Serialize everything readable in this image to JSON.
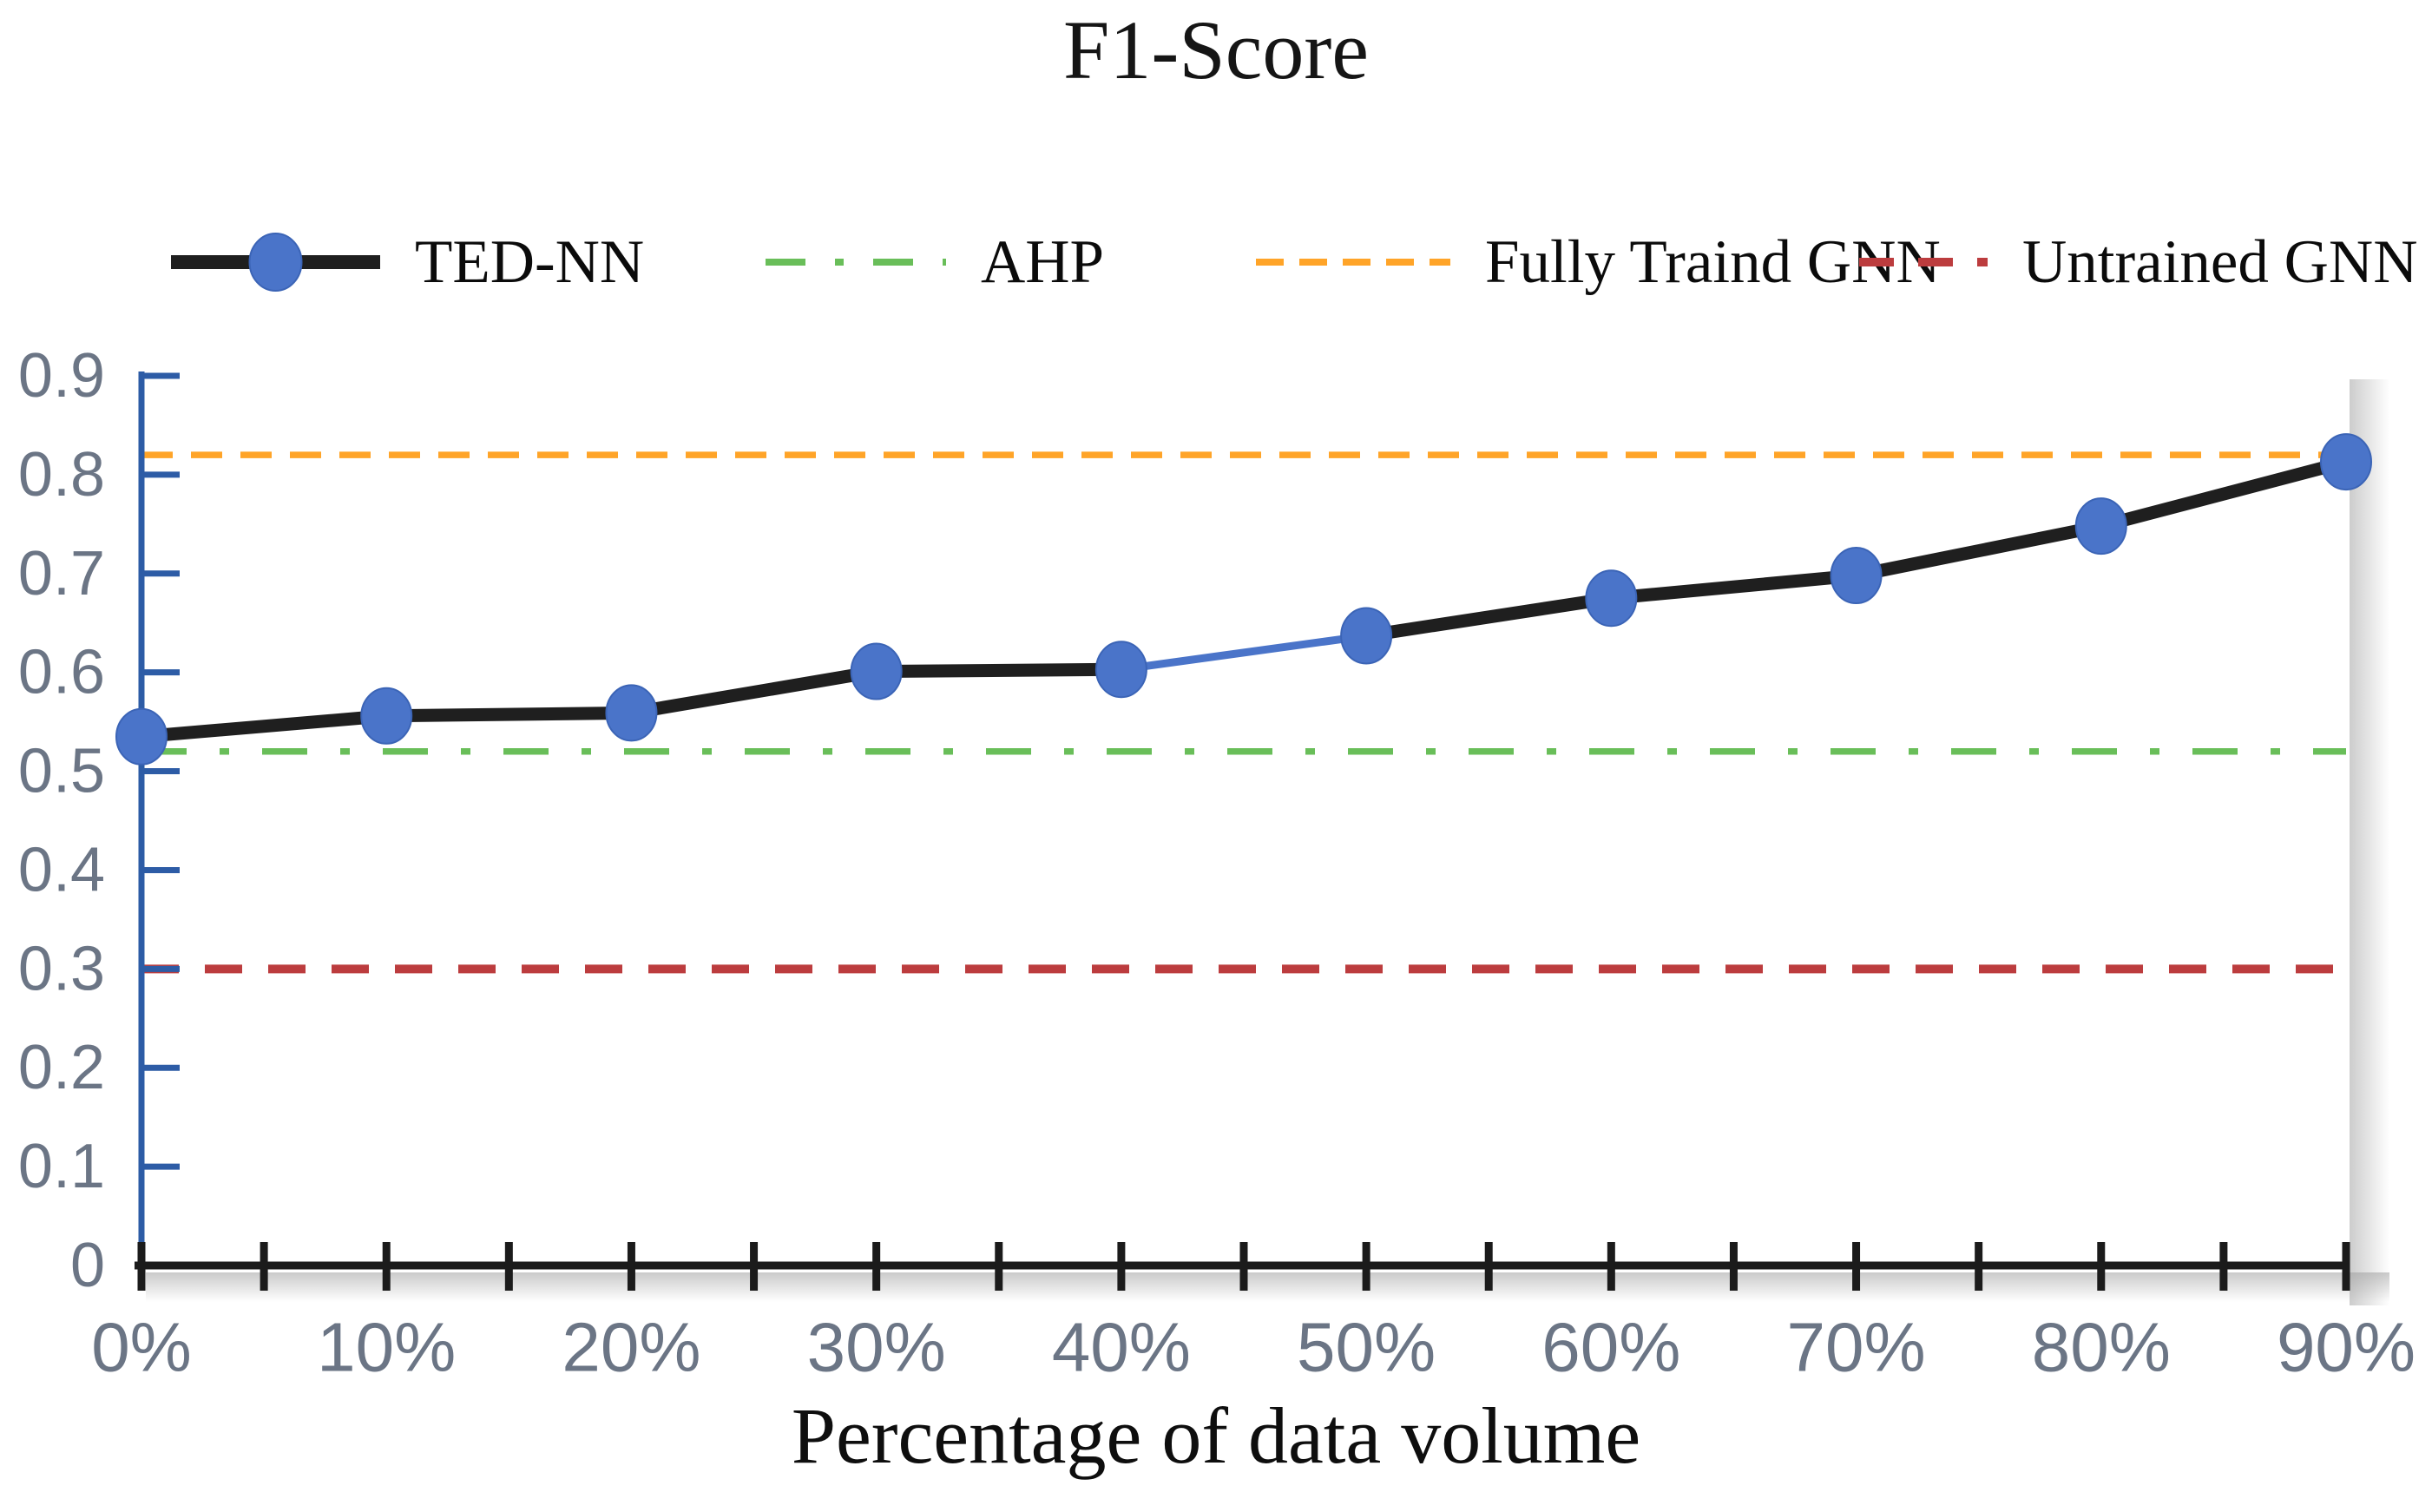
{
  "title": "F1-Score",
  "xlabel": "Percentage of data volume",
  "legend": [
    {
      "label": "TED-NN",
      "style": "solid-marker",
      "color": "#1f1f1f",
      "marker_color": "#4a74c9"
    },
    {
      "label": "AHP",
      "style": "dashdot",
      "color": "#69be59"
    },
    {
      "label": "Fully Traind GNN",
      "style": "dashed",
      "color": "#ffa428"
    },
    {
      "label": "Untrained GNN",
      "style": "dashed",
      "color": "#bc3c3e"
    }
  ],
  "chart_data": {
    "type": "line",
    "title": "F1-Score",
    "xlabel": "Percentage of data volume",
    "ylabel": "",
    "categories": [
      "0%",
      "10%",
      "20%",
      "30%",
      "40%",
      "50%",
      "60%",
      "70%",
      "80%",
      "90%"
    ],
    "yticks": [
      "0",
      "0.1",
      "0.2",
      "0.3",
      "0.4",
      "0.5",
      "0.6",
      "0.7",
      "0.8",
      "0.9"
    ],
    "ylim": [
      0,
      0.9
    ],
    "grid": false,
    "legend_position": "top",
    "series": [
      {
        "name": "TED-NN",
        "style": "solid-marker",
        "color": "#1f1f1f",
        "marker_color": "#4a74c9",
        "values": [
          0.535,
          0.556,
          0.559,
          0.601,
          0.603,
          0.637,
          0.675,
          0.698,
          0.748,
          0.813
        ],
        "highlight_segment": {
          "from_index": 4,
          "to_index": 5,
          "color": "#4a74c9"
        }
      },
      {
        "name": "AHP",
        "style": "dashdot",
        "color": "#69be59",
        "constant": 0.52
      },
      {
        "name": "Fully Traind GNN",
        "style": "dashed",
        "color": "#ffa428",
        "constant": 0.82
      },
      {
        "name": "Untrained GNN",
        "style": "dashed",
        "color": "#bc3c3e",
        "constant": 0.3
      }
    ],
    "axis_colors": {
      "y_axis": "#2d5ca6",
      "x_axis": "#1b1b1b",
      "tick_labels": "#6b7585"
    }
  }
}
